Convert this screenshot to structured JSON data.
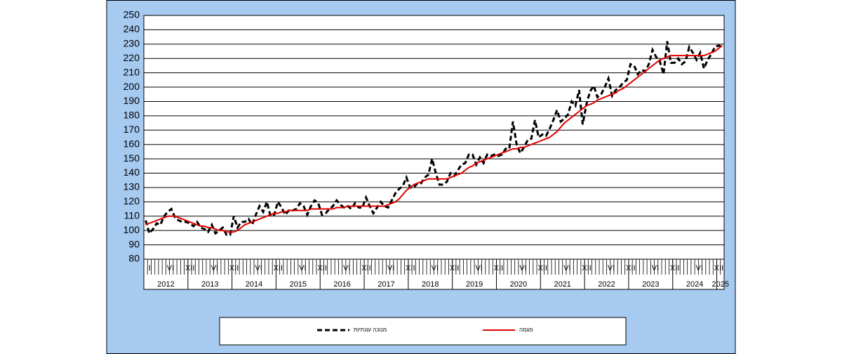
{
  "chart_data": {
    "type": "line",
    "categories": [
      "I",
      null,
      null,
      null,
      null,
      "VI",
      null,
      null,
      null,
      null,
      "XI",
      null,
      "I",
      null,
      null,
      null,
      null,
      "VI",
      null,
      null,
      null,
      null,
      "XI",
      null,
      "I",
      null,
      null,
      null,
      null,
      "VI",
      null,
      null,
      null,
      null,
      "XI",
      null,
      "I",
      null,
      null,
      null,
      null,
      "VI",
      null,
      null,
      null,
      null,
      "XI",
      null,
      "I",
      null,
      null,
      null,
      null,
      "VI",
      null,
      null,
      null,
      null,
      "XI",
      null,
      "I",
      null,
      null,
      null,
      null,
      "VI",
      null,
      null,
      null,
      null,
      "XI",
      null,
      "I",
      null,
      null,
      null,
      null,
      "VI",
      null,
      null,
      null,
      null,
      "XI",
      null,
      "I",
      null,
      null,
      null,
      null,
      "VI",
      null,
      null,
      null,
      null,
      "XI",
      null,
      "I",
      null,
      null,
      null,
      null,
      "VI",
      null,
      null,
      null,
      null,
      "XI",
      null,
      "I",
      null,
      null,
      null,
      null,
      "VI",
      null,
      null,
      null,
      null,
      "XI",
      null,
      "I",
      null,
      null,
      null,
      null,
      "VI",
      null,
      null,
      null,
      null,
      "XI",
      null,
      "I",
      null,
      null,
      null,
      null,
      "VI",
      null,
      null,
      null,
      null,
      "XI",
      null,
      "I",
      null,
      null,
      null,
      null,
      "VI",
      null,
      null,
      null,
      null,
      "XI",
      null,
      "I",
      null
    ],
    "years": [
      "2012",
      "2013",
      "2014",
      "2015",
      "2016",
      "2017",
      "2018",
      "2019",
      "2020",
      "2021",
      "2022",
      "2023",
      "2024",
      "2025"
    ],
    "series": [
      {
        "name": "מנוכה עונתיות",
        "color": "#000000",
        "dash": true,
        "values": [
          107,
          98,
          101,
          105,
          104,
          110,
          113,
          115,
          109,
          107,
          106,
          106,
          105,
          103,
          106,
          102,
          101,
          99,
          104,
          98,
          100,
          102,
          97,
          97,
          110,
          102,
          106,
          106,
          108,
          104,
          111,
          117,
          113,
          120,
          110,
          111,
          120,
          116,
          111,
          114,
          114,
          115,
          119,
          117,
          111,
          117,
          121,
          119,
          111,
          112,
          115,
          117,
          121,
          118,
          116,
          117,
          115,
          119,
          116,
          116,
          123,
          117,
          112,
          116,
          120,
          117,
          116,
          121,
          126,
          129,
          131,
          137,
          130,
          130,
          133,
          133,
          137,
          139,
          150,
          140,
          132,
          132,
          134,
          140,
          138,
          142,
          146,
          147,
          153,
          153,
          146,
          151,
          147,
          153,
          152,
          153,
          152,
          153,
          157,
          157,
          176,
          160,
          154,
          158,
          163,
          164,
          177,
          165,
          167,
          166,
          171,
          177,
          184,
          176,
          178,
          181,
          190,
          187,
          198,
          174,
          188,
          197,
          201,
          193,
          195,
          200,
          206,
          194,
          198,
          200,
          203,
          205,
          216,
          215,
          209,
          212,
          211,
          216,
          226,
          221,
          218,
          209,
          232,
          217,
          217,
          220,
          216,
          218,
          228,
          224,
          219,
          224,
          213,
          219,
          223,
          228,
          229,
          228
        ]
      },
      {
        "name": "מגמה",
        "color": "#e00000",
        "dash": false,
        "values": [
          104,
          105,
          106,
          107,
          108,
          109,
          110,
          110,
          110,
          109,
          108,
          107,
          106,
          105,
          104,
          103,
          103,
          102,
          102,
          101,
          100,
          100,
          99,
          99,
          99,
          100,
          102,
          104,
          105,
          106,
          107,
          108,
          109,
          110,
          111,
          112,
          112,
          113,
          113,
          114,
          114,
          114,
          114,
          114,
          114,
          115,
          115,
          115,
          115,
          115,
          115,
          115,
          116,
          116,
          116,
          117,
          117,
          117,
          117,
          117,
          117,
          117,
          117,
          117,
          117,
          117,
          118,
          119,
          120,
          122,
          125,
          128,
          130,
          132,
          133,
          134,
          135,
          136,
          136,
          136,
          136,
          136,
          136,
          137,
          138,
          139,
          140,
          142,
          144,
          145,
          147,
          148,
          149,
          150,
          151,
          152,
          153,
          154,
          155,
          156,
          157,
          157,
          158,
          158,
          159,
          160,
          161,
          162,
          163,
          164,
          165,
          167,
          169,
          172,
          175,
          177,
          179,
          181,
          183,
          185,
          187,
          188,
          189,
          191,
          192,
          193,
          194,
          195,
          196,
          198,
          199,
          201,
          203,
          205,
          207,
          209,
          211,
          213,
          215,
          217,
          219,
          220,
          221,
          222,
          222,
          222,
          222,
          222,
          222,
          222,
          222,
          222,
          222,
          223,
          224,
          225,
          227,
          229
        ]
      }
    ],
    "ylim": [
      80,
      250
    ],
    "yticks": [
      80,
      90,
      100,
      110,
      120,
      130,
      140,
      150,
      160,
      170,
      180,
      190,
      200,
      210,
      220,
      230,
      240,
      250
    ],
    "grid": true
  }
}
